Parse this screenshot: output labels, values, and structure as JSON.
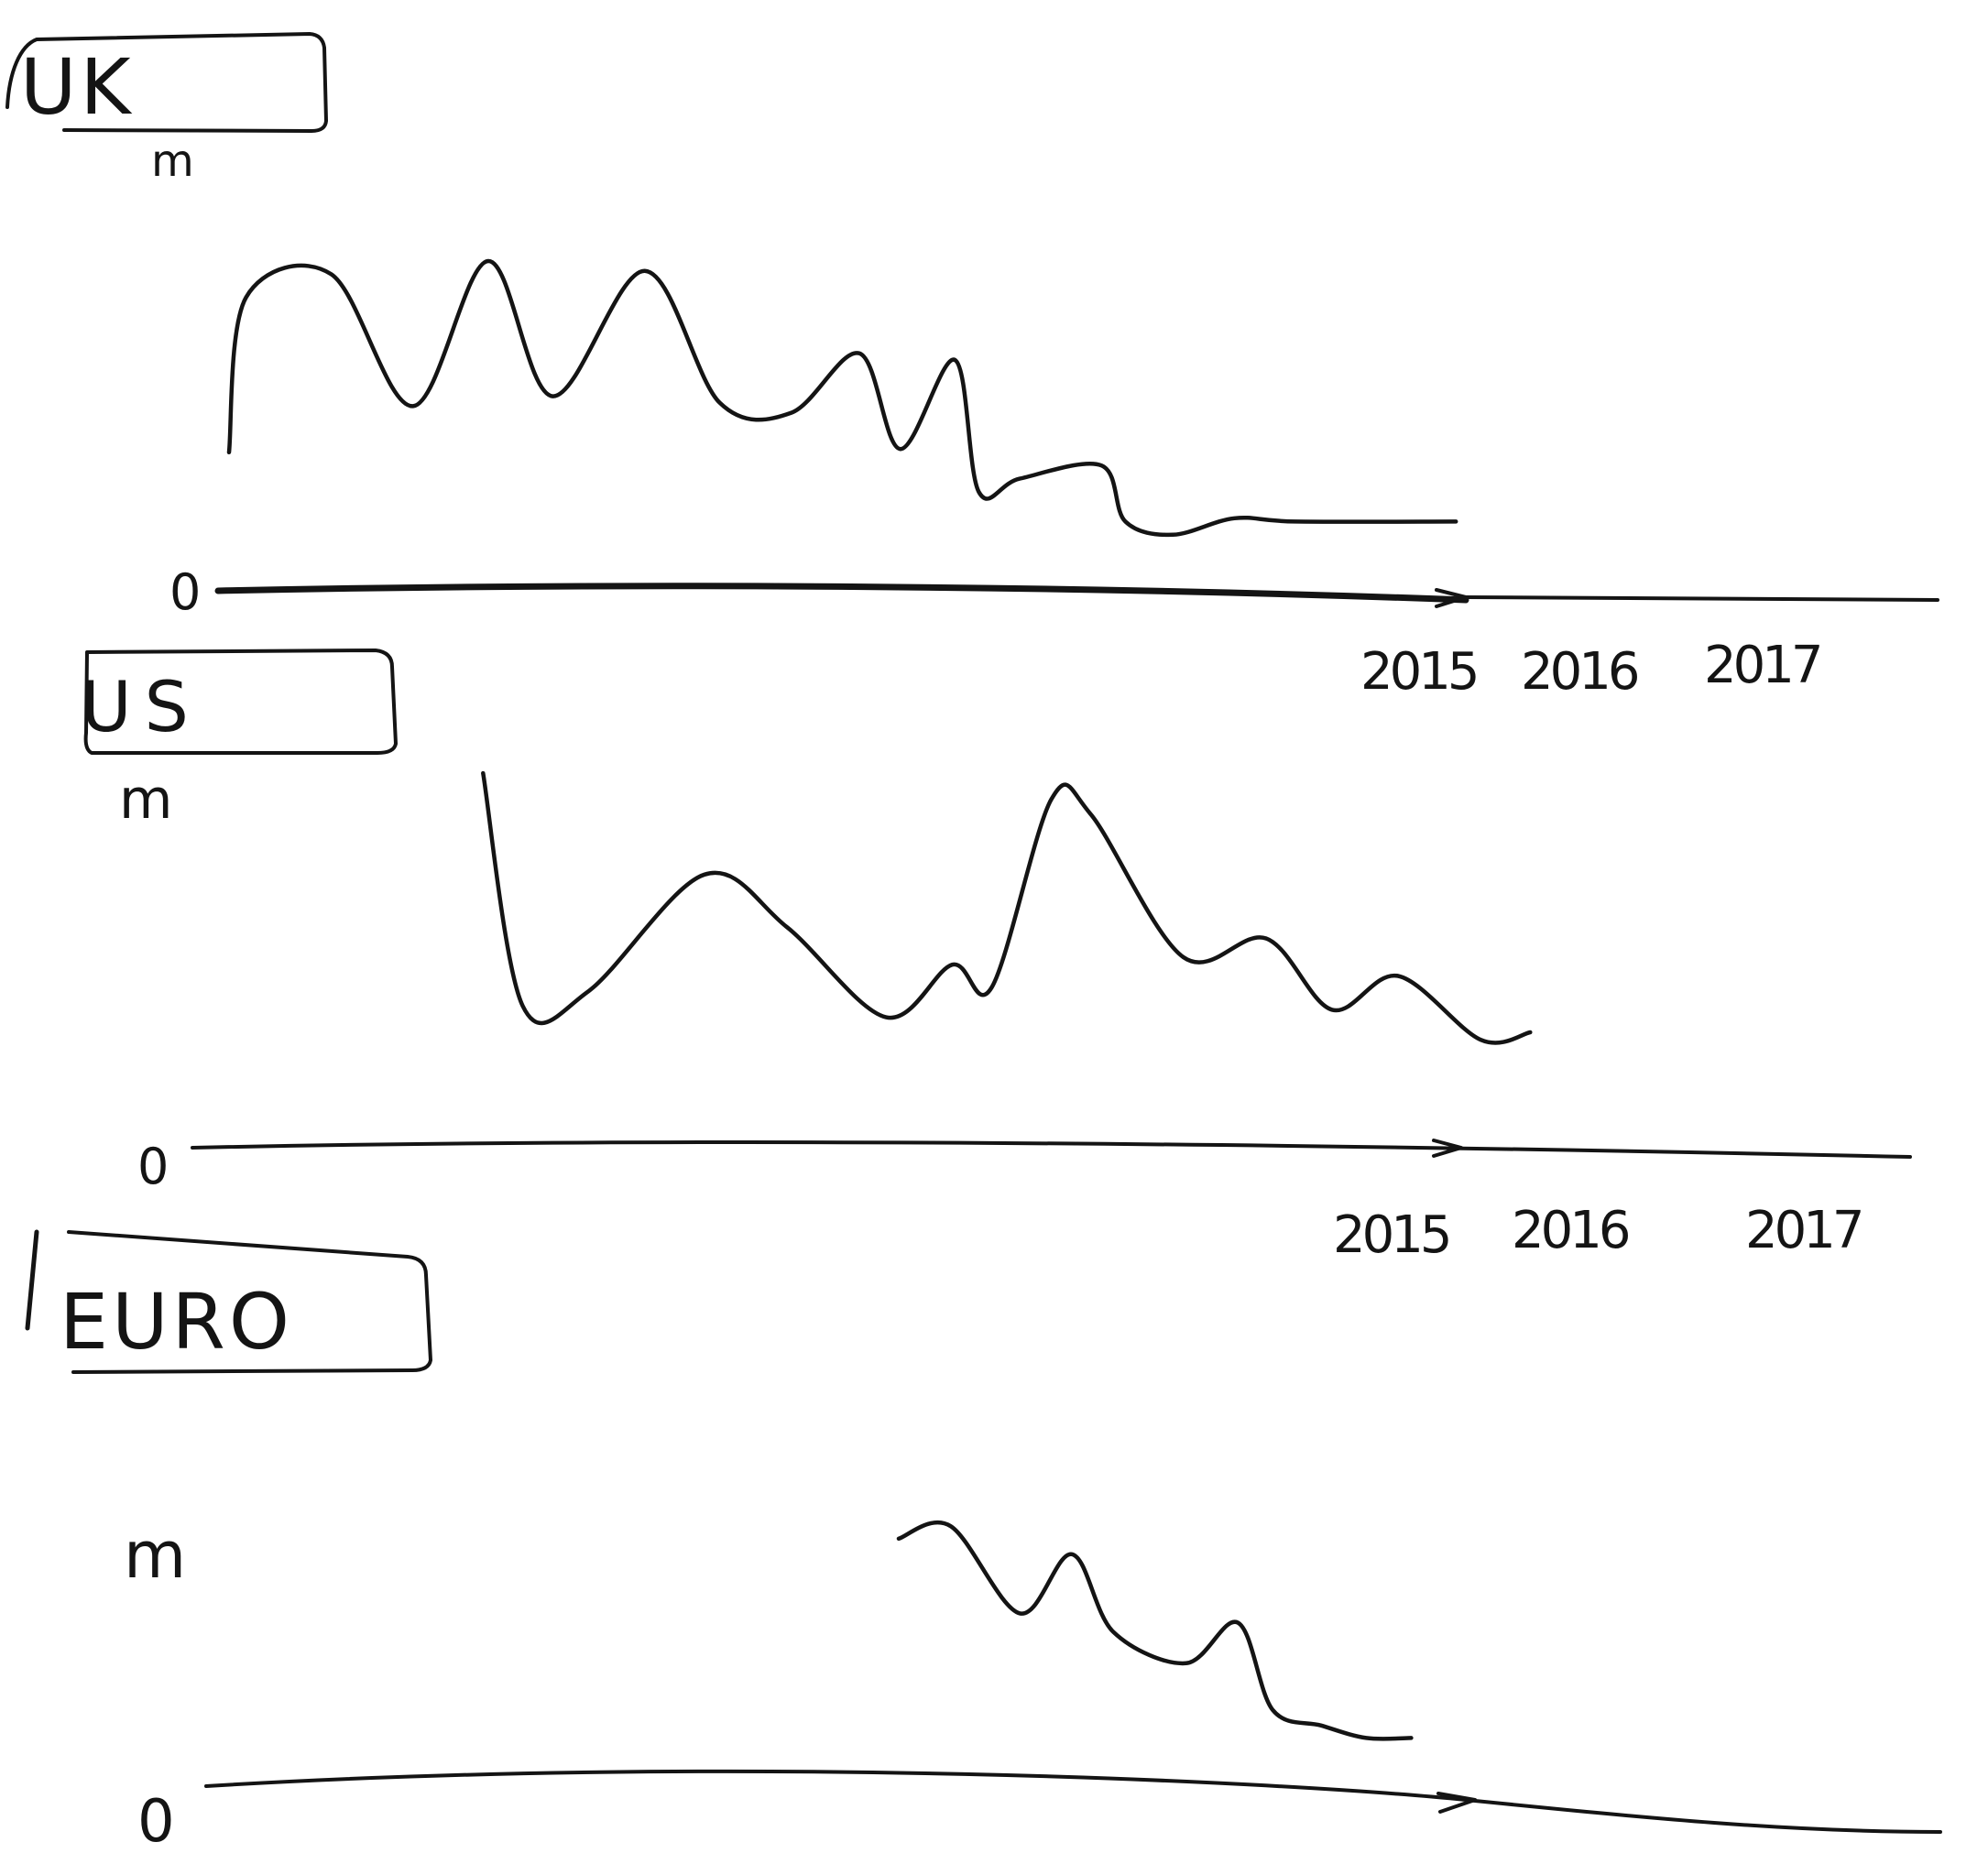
{
  "chart_data": [
    {
      "type": "line",
      "title": "UK",
      "ylabel": "m",
      "ytick": "0",
      "xticks": [
        "2015",
        "2016",
        "2017"
      ],
      "xlim": [
        2012.7,
        2017.7
      ],
      "ylim": [
        0,
        1
      ],
      "series": [
        {
          "x": [
            2012.7,
            2012.75,
            2013.0,
            2013.24,
            2013.46,
            2013.65,
            2013.92,
            2014.14,
            2014.35,
            2014.55,
            2014.67,
            2014.83,
            2014.9,
            2015.02,
            2015.26,
            2015.33,
            2015.47,
            2015.65,
            2015.83,
            2016.3
          ],
          "y": [
            0.42,
            0.89,
            0.96,
            0.56,
            1.0,
            0.59,
            0.97,
            0.57,
            0.54,
            0.72,
            0.43,
            0.7,
            0.3,
            0.34,
            0.38,
            0.21,
            0.17,
            0.22,
            0.21,
            0.21
          ]
        }
      ]
    },
    {
      "type": "line",
      "title": "US",
      "ylabel": "m",
      "ytick": "0",
      "xticks": [
        "2015",
        "2016",
        "2017"
      ],
      "xlim": [
        2012.3,
        2017.5
      ],
      "ylim": [
        0,
        1
      ],
      "series": [
        {
          "x": [
            2013.18,
            2013.3,
            2013.5,
            2013.85,
            2014.1,
            2014.4,
            2014.6,
            2014.72,
            2014.9,
            2015.02,
            2015.3,
            2015.55,
            2015.75,
            2015.95,
            2016.2,
            2016.35
          ],
          "y": [
            0.99,
            0.37,
            0.41,
            0.72,
            0.58,
            0.34,
            0.48,
            0.42,
            0.92,
            0.88,
            0.5,
            0.55,
            0.36,
            0.45,
            0.28,
            0.3
          ]
        }
      ]
    },
    {
      "type": "line",
      "title": "EURO",
      "ylabel": "m",
      "ytick": "0",
      "xticks": [],
      "xlim": [
        2012.7,
        2017.7
      ],
      "ylim": [
        0,
        1
      ],
      "series": [
        {
          "x": [
            2014.7,
            2014.85,
            2015.05,
            2015.2,
            2015.32,
            2015.53,
            2015.68,
            2015.78,
            2015.92,
            2016.05,
            2016.18
          ],
          "y": [
            0.78,
            0.82,
            0.54,
            0.73,
            0.48,
            0.38,
            0.51,
            0.23,
            0.18,
            0.14,
            0.14
          ]
        }
      ]
    }
  ]
}
